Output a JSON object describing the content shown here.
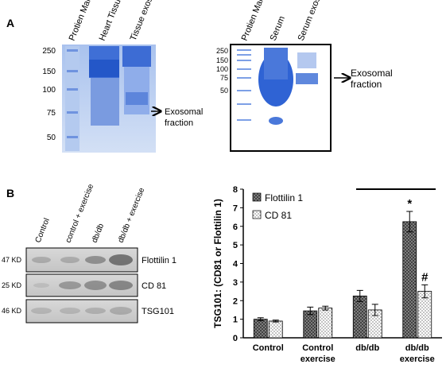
{
  "panel_a": {
    "label": "A",
    "tissue_gel": {
      "lanes": [
        "Protien Marker",
        "Heart Tissue",
        "Tissue exosome"
      ],
      "markers": [
        250,
        150,
        100,
        75,
        50
      ],
      "annotation": "Exosomal fraction"
    },
    "serum_gel": {
      "lanes": [
        "Protien Marker",
        "Serum",
        "Serum  exosome"
      ],
      "markers": [
        250,
        150,
        100,
        75,
        50
      ],
      "annotation": "Exosomal fraction"
    }
  },
  "panel_b": {
    "label": "B",
    "blot": {
      "lanes": [
        "Control",
        "control + exercise",
        "db/db",
        "db/db + exercise"
      ],
      "rows": [
        {
          "size": "47 KD",
          "protein": "Flottilin 1"
        },
        {
          "size": "25 KD",
          "protein": "CD 81"
        },
        {
          "size": "46 KD",
          "protein": "TSG101"
        }
      ]
    }
  },
  "chart_data": {
    "type": "bar",
    "y_label": "TSG101: (CD81 or Flottilin 1)",
    "categories": [
      "Control",
      "Control exercise",
      "db/db",
      "db/db exercise"
    ],
    "series": [
      {
        "name": "Flottilin 1",
        "color": "#8c8c8c",
        "pattern": "crosshatch",
        "values": [
          1.0,
          1.45,
          2.25,
          6.25
        ],
        "errors": [
          0.08,
          0.2,
          0.3,
          0.55
        ]
      },
      {
        "name": "CD 81",
        "color": "#ffffff",
        "pattern": "dots",
        "values": [
          0.9,
          1.6,
          1.5,
          2.5
        ],
        "errors": [
          0.05,
          0.1,
          0.3,
          0.35
        ]
      }
    ],
    "annotations": [
      "*",
      "#"
    ],
    "ylim": [
      0,
      8
    ],
    "yticks": [
      0,
      1,
      2,
      3,
      4,
      5,
      6,
      7,
      8
    ],
    "grid": false,
    "legend": "upper left"
  }
}
